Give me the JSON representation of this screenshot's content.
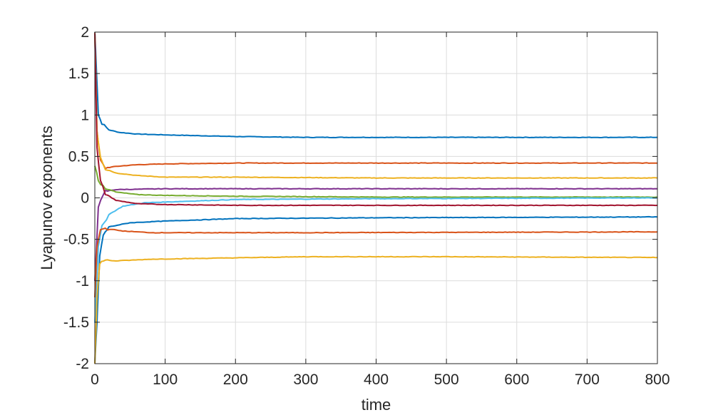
{
  "chart_data": {
    "type": "line",
    "title": "",
    "xlabel": "time",
    "ylabel": "Lyapunov exponents",
    "xlim": [
      0,
      800
    ],
    "ylim": [
      -2,
      2
    ],
    "xticks": [
      0,
      100,
      200,
      300,
      400,
      500,
      600,
      700,
      800
    ],
    "yticks": [
      -2,
      -1.5,
      -1,
      -0.5,
      0,
      0.5,
      1,
      1.5,
      2
    ],
    "xtick_labels": [
      "0",
      "100",
      "200",
      "300",
      "400",
      "500",
      "600",
      "700",
      "800"
    ],
    "ytick_labels": [
      "-2",
      "-1.5",
      "-1",
      "-0.5",
      "0",
      "0.5",
      "1",
      "1.5",
      "2"
    ],
    "grid": true,
    "legend": "none",
    "series": [
      {
        "color": "#0072BD",
        "points": [
          [
            0,
            2.0
          ],
          [
            2,
            1.6
          ],
          [
            5,
            1.0
          ],
          [
            10,
            0.9
          ],
          [
            20,
            0.82
          ],
          [
            35,
            0.79
          ],
          [
            60,
            0.77
          ],
          [
            100,
            0.76
          ],
          [
            200,
            0.74
          ],
          [
            300,
            0.73
          ],
          [
            500,
            0.73
          ],
          [
            800,
            0.73
          ]
        ]
      },
      {
        "color": "#D95319",
        "points": [
          [
            0,
            2.0
          ],
          [
            3,
            0.8
          ],
          [
            8,
            0.45
          ],
          [
            15,
            0.36
          ],
          [
            30,
            0.38
          ],
          [
            60,
            0.4
          ],
          [
            100,
            0.41
          ],
          [
            200,
            0.42
          ],
          [
            400,
            0.42
          ],
          [
            800,
            0.42
          ]
        ]
      },
      {
        "color": "#EDB120",
        "points": [
          [
            0,
            2.0
          ],
          [
            3,
            0.8
          ],
          [
            8,
            0.5
          ],
          [
            15,
            0.35
          ],
          [
            30,
            0.3
          ],
          [
            60,
            0.27
          ],
          [
            100,
            0.25
          ],
          [
            200,
            0.25
          ],
          [
            400,
            0.24
          ],
          [
            800,
            0.24
          ]
        ]
      },
      {
        "color": "#7E2F8E",
        "points": [
          [
            0,
            -1.0
          ],
          [
            5,
            -0.1
          ],
          [
            15,
            0.08
          ],
          [
            30,
            0.1
          ],
          [
            100,
            0.11
          ],
          [
            300,
            0.11
          ],
          [
            800,
            0.11
          ]
        ]
      },
      {
        "color": "#77AC30",
        "points": [
          [
            0,
            0.4
          ],
          [
            5,
            0.2
          ],
          [
            15,
            0.12
          ],
          [
            30,
            0.07
          ],
          [
            60,
            0.04
          ],
          [
            100,
            0.03
          ],
          [
            200,
            0.02
          ],
          [
            400,
            0.01
          ],
          [
            800,
            0.01
          ]
        ]
      },
      {
        "color": "#4DBEEE",
        "points": [
          [
            0,
            -1.5
          ],
          [
            5,
            -0.6
          ],
          [
            10,
            -0.35
          ],
          [
            20,
            -0.2
          ],
          [
            40,
            -0.1
          ],
          [
            70,
            -0.06
          ],
          [
            100,
            -0.05
          ],
          [
            200,
            -0.02
          ],
          [
            400,
            -0.01
          ],
          [
            800,
            0.0
          ]
        ]
      },
      {
        "color": "#A2142F",
        "points": [
          [
            0,
            2.0
          ],
          [
            3,
            0.6
          ],
          [
            8,
            0.2
          ],
          [
            15,
            0.05
          ],
          [
            30,
            -0.03
          ],
          [
            60,
            -0.07
          ],
          [
            100,
            -0.08
          ],
          [
            200,
            -0.09
          ],
          [
            400,
            -0.09
          ],
          [
            800,
            -0.09
          ]
        ]
      },
      {
        "color": "#0072BD",
        "points": [
          [
            0,
            -2.0
          ],
          [
            3,
            -1.5
          ],
          [
            7,
            -0.7
          ],
          [
            12,
            -0.45
          ],
          [
            20,
            -0.35
          ],
          [
            50,
            -0.3
          ],
          [
            100,
            -0.28
          ],
          [
            200,
            -0.25
          ],
          [
            400,
            -0.24
          ],
          [
            800,
            -0.23
          ]
        ]
      },
      {
        "color": "#D95319",
        "points": [
          [
            0,
            -1.2
          ],
          [
            3,
            -0.6
          ],
          [
            8,
            -0.38
          ],
          [
            15,
            -0.37
          ],
          [
            40,
            -0.4
          ],
          [
            80,
            -0.42
          ],
          [
            150,
            -0.42
          ],
          [
            300,
            -0.42
          ],
          [
            800,
            -0.41
          ]
        ]
      },
      {
        "color": "#EDB120",
        "points": [
          [
            0,
            -2.0
          ],
          [
            3,
            -1.2
          ],
          [
            7,
            -0.8
          ],
          [
            12,
            -0.75
          ],
          [
            30,
            -0.76
          ],
          [
            80,
            -0.74
          ],
          [
            150,
            -0.73
          ],
          [
            300,
            -0.71
          ],
          [
            500,
            -0.71
          ],
          [
            800,
            -0.72
          ]
        ]
      }
    ]
  }
}
